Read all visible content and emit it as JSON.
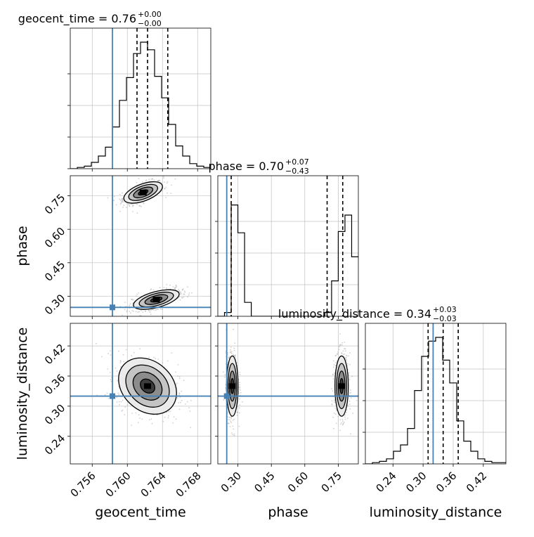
{
  "chart_data": {
    "type": "corner",
    "parameters": [
      {
        "name": "geocent_time",
        "median": 0.7623,
        "q16": 0.7611,
        "q84": 0.7646,
        "truth": 0.7583,
        "range": [
          0.7535,
          0.7695
        ],
        "ticks": [
          0.756,
          0.76,
          0.764,
          0.768
        ],
        "tick_labels": [
          "0.756",
          "0.760",
          "0.764",
          "0.768"
        ]
      },
      {
        "name": "phase",
        "median": 0.7,
        "q16": 0.27,
        "q84": 0.77,
        "truth": 0.25,
        "range": [
          0.21,
          0.84
        ],
        "ticks": [
          0.3,
          0.45,
          0.6,
          0.75
        ],
        "tick_labels": [
          "0.30",
          "0.45",
          "0.60",
          "0.75"
        ]
      },
      {
        "name": "luminosity_distance",
        "median": 0.34,
        "q16": 0.31,
        "q84": 0.37,
        "truth": 0.32,
        "range": [
          0.185,
          0.465
        ],
        "ticks": [
          0.24,
          0.3,
          0.36,
          0.42
        ],
        "tick_labels": [
          "0.24",
          "0.30",
          "0.36",
          "0.42"
        ]
      }
    ],
    "titles": [
      {
        "param": "geocent_time",
        "text": "geocent_time = 0.76",
        "sup": "+0.00",
        "sub": "−0.00"
      },
      {
        "param": "phase",
        "text": "phase = 0.70",
        "sup": "+0.07",
        "sub": "−0.43"
      },
      {
        "param": "luminosity_distance",
        "text": "luminosity_distance = 0.34",
        "sup": "+0.03",
        "sub": "−0.03"
      }
    ],
    "histograms": [
      {
        "param": "geocent_time",
        "bin_range": [
          0.7535,
          0.7695
        ],
        "counts": [
          0,
          0.01,
          0.02,
          0.05,
          0.1,
          0.17,
          0.33,
          0.54,
          0.72,
          0.91,
          1.0,
          0.94,
          0.73,
          0.56,
          0.35,
          0.18,
          0.1,
          0.04,
          0.02,
          0.01
        ]
      },
      {
        "param": "phase",
        "bin_range": [
          0.21,
          0.84
        ],
        "counts": [
          0,
          0.03,
          0.88,
          0.66,
          0.11,
          0,
          0,
          0,
          0,
          0,
          0,
          0,
          0,
          0,
          0,
          0,
          0.03,
          0.28,
          0.67,
          0.8,
          0.47
        ]
      },
      {
        "param": "luminosity_distance",
        "bin_range": [
          0.185,
          0.465
        ],
        "counts": [
          0,
          0.01,
          0.02,
          0.04,
          0.1,
          0.15,
          0.28,
          0.58,
          0.85,
          0.97,
          1.0,
          0.82,
          0.64,
          0.34,
          0.18,
          0.1,
          0.04,
          0.02,
          0.01,
          0.01
        ]
      }
    ],
    "contour_panels": [
      {
        "x": "geocent_time",
        "y": "phase",
        "modes": [
          {
            "center": [
              0.7618,
              0.765
            ],
            "sx": 0.0011,
            "sy": 0.024,
            "rho": 0.55
          },
          {
            "center": [
              0.7633,
              0.285
            ],
            "sx": 0.0013,
            "sy": 0.022,
            "rho": 0.55
          }
        ]
      },
      {
        "x": "geocent_time",
        "y": "luminosity_distance",
        "modes": [
          {
            "center": [
              0.7623,
              0.34
            ],
            "sx": 0.00165,
            "sy": 0.028,
            "rho": -0.25
          }
        ]
      },
      {
        "x": "phase",
        "y": "luminosity_distance",
        "modes": [
          {
            "center": [
              0.275,
              0.34
            ],
            "sx": 0.013,
            "sy": 0.03,
            "rho": 0.0
          },
          {
            "center": [
              0.765,
              0.34
            ],
            "sx": 0.015,
            "sy": 0.03,
            "rho": 0.0
          }
        ]
      }
    ],
    "contour_levels": [
      "0.5 sigma",
      "1 sigma",
      "1.5 sigma",
      "2 sigma"
    ],
    "grid": true,
    "colors": {
      "truth": "#4682b4",
      "contour": "#000000",
      "histogram": "#000000",
      "quantile": "#000000",
      "grid": "#c0c0c0",
      "samples": "#a9a9a9"
    }
  }
}
